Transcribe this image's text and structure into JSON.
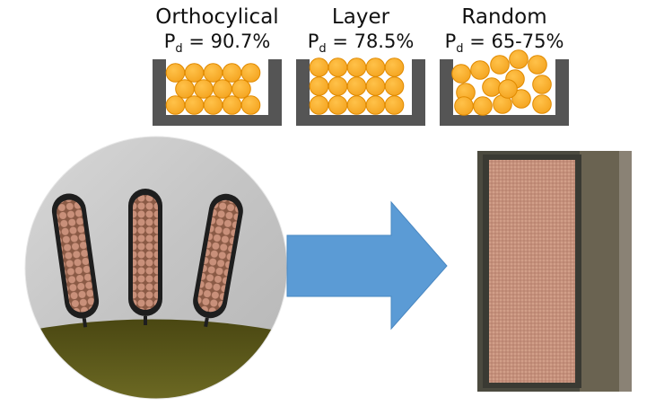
{
  "packings": [
    {
      "name": "Orthocylical",
      "pd_symbol": "P",
      "pd_sub": "d",
      "pd_value": "= 90.7%"
    },
    {
      "name": "Layer",
      "pd_symbol": "P",
      "pd_sub": "d",
      "pd_value": "= 78.5%"
    },
    {
      "name": "Random",
      "pd_symbol": "P",
      "pd_sub": "d",
      "pd_value": "= 65-75%"
    }
  ],
  "colors": {
    "wire": "#F5A623",
    "wire_stroke": "#E08A00",
    "slot": "#555555",
    "arrow": "#5B9BD5",
    "copper": "#B57A5E",
    "steel": "#C9C9C9",
    "resin": "#5A5718"
  }
}
